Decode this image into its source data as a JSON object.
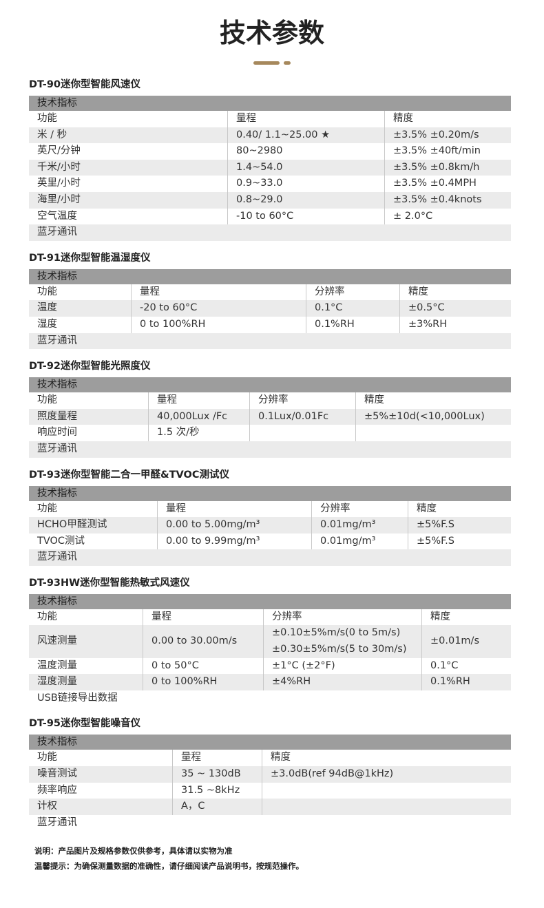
{
  "title": "技术参数",
  "sections": [
    {
      "heading": "DT-90迷你型智能风速仪",
      "table_title": "技术指标",
      "header": [
        "功能",
        "量程",
        "精度"
      ],
      "rows": [
        [
          "米 / 秒",
          "0.40/ 1.1~25.00 ★",
          "±3.5% ±0.20m/s"
        ],
        [
          "英尺/分钟",
          "80~2980",
          "±3.5% ±40ft/min"
        ],
        [
          "千米/小时",
          "1.4~54.0",
          "±3.5% ±0.8km/h"
        ],
        [
          "英里/小时",
          "0.9~33.0",
          "±3.5% ±0.4MPH"
        ],
        [
          "海里/小时",
          "0.8~29.0",
          "±3.5% ±0.4knots"
        ],
        [
          "空气温度",
          "-10 to 60°C",
          "± 2.0°C"
        ]
      ],
      "footer": "蓝牙通讯"
    },
    {
      "heading": "DT-91迷你型智能温湿度仪",
      "table_title": "技术指标",
      "header": [
        "功能",
        "量程",
        "分辨率",
        "精度"
      ],
      "rows": [
        [
          "温度",
          "-20 to 60°C",
          "0.1°C",
          "±0.5°C"
        ],
        [
          "湿度",
          "0 to 100%RH",
          "0.1%RH",
          "±3%RH"
        ]
      ],
      "footer": "蓝牙通讯"
    },
    {
      "heading": "DT-92迷你型智能光照度仪",
      "table_title": "技术指标",
      "header": [
        "功能",
        "量程",
        "分辨率",
        "精度"
      ],
      "rows": [
        [
          "照度量程",
          "40,000Lux /Fc",
          "0.1Lux/0.01Fc",
          "±5%±10d(<10,000Lux)"
        ],
        [
          "响应时间",
          "1.5 次/秒"
        ]
      ],
      "footer": "蓝牙通讯"
    },
    {
      "heading": "DT-93迷你型智能二合一甲醛&TVOC测试仪",
      "table_title": "技术指标",
      "header": [
        "功能",
        "量程",
        "分辨率",
        "精度"
      ],
      "rows": [
        [
          "HCHO甲醛测试",
          "0.00 to 5.00mg/m³",
          "0.01mg/m³",
          "±5%F.S"
        ],
        [
          "TVOC测试",
          "0.00 to 9.99mg/m³",
          "0.01mg/m³",
          "±5%F.S"
        ]
      ],
      "footer": "蓝牙通讯"
    },
    {
      "heading": "DT-93HW迷你型智能热敏式风速仪",
      "table_title": "技术指标",
      "header": [
        "功能",
        "量程",
        "分辨率",
        "精度"
      ],
      "rows": [
        [
          "风速测量",
          "0.00 to 30.00m/s",
          [
            "±0.10±5%m/s(0 to 5m/s)",
            "±0.30±5%m/s(5 to 30m/s)"
          ],
          "±0.01m/s"
        ],
        [
          "温度测量",
          "0 to 50°C",
          "±1°C (±2°F)",
          "0.1°C"
        ],
        [
          "湿度测量",
          "0 to 100%RH",
          "±4%RH",
          "0.1%RH"
        ]
      ],
      "footer": "USB链接导出数据"
    },
    {
      "heading": "DT-95迷你型智能噪音仪",
      "table_title": "技术指标",
      "header": [
        "功能",
        "量程",
        "精度"
      ],
      "rows": [
        [
          "噪音测试",
          "35 ~ 130dB",
          "±3.0dB(ref 94dB@1kHz)"
        ],
        [
          "频率响应",
          "31.5 ~8kHz"
        ],
        [
          "计权",
          "A，C"
        ]
      ],
      "footer": "蓝牙通讯"
    }
  ],
  "notes": [
    "说明：产品图片及规格参数仅供参考，具体请以实物为准",
    "温馨提示：为确保测量数据的准确性，请仔细阅读产品说明书，按规范操作。"
  ]
}
